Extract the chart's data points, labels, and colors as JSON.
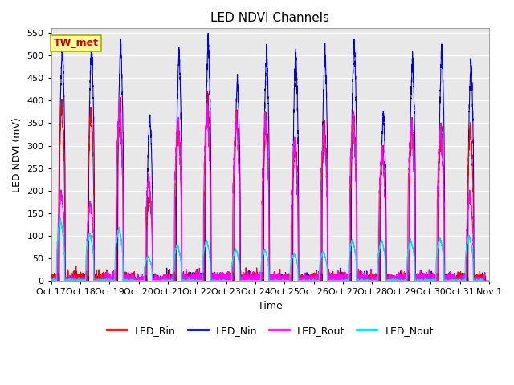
{
  "title": "LED NDVI Channels",
  "ylabel": "LED NDVI (mV)",
  "xlabel": "Time",
  "annotation": "TW_met",
  "ylim": [
    0,
    560
  ],
  "yticks": [
    0,
    50,
    100,
    150,
    200,
    250,
    300,
    350,
    400,
    450,
    500,
    550
  ],
  "xtick_labels": [
    "Oct 17",
    "Oct 18",
    "Oct 19",
    "Oct 20",
    "Oct 21",
    "Oct 22",
    "Oct 23",
    "Oct 24",
    "Oct 25",
    "Oct 26",
    "Oct 27",
    "Oct 28",
    "Oct 29",
    "Oct 30",
    "Oct 31",
    "Nov 1"
  ],
  "colors": {
    "LED_Rin": "#ff0000",
    "LED_Nin": "#0000ee",
    "LED_Rout": "#ff00ff",
    "LED_Nout": "#00ddff"
  },
  "background_color": "#e8e8e8",
  "line_width": 0.8,
  "peaks_Nin": [
    530,
    530,
    530,
    370,
    515,
    540,
    450,
    515,
    515,
    515,
    540,
    375,
    500,
    520,
    490
  ],
  "peaks_Rin": [
    400,
    385,
    390,
    195,
    350,
    405,
    370,
    365,
    310,
    345,
    370,
    295,
    355,
    345,
    345
  ],
  "peaks_Rout": [
    200,
    175,
    390,
    230,
    355,
    385,
    365,
    365,
    310,
    340,
    370,
    295,
    355,
    340,
    195
  ],
  "peaks_Nout": [
    135,
    105,
    115,
    55,
    80,
    90,
    70,
    70,
    60,
    65,
    90,
    90,
    90,
    95,
    100
  ],
  "peak_offsets_Nin": [
    0.38,
    0.38,
    0.38,
    0.38,
    0.38,
    0.38,
    0.38,
    0.38,
    0.38,
    0.38,
    0.38,
    0.38,
    0.38,
    0.38,
    0.38
  ],
  "peak_offsets_Rin": [
    0.36,
    0.36,
    0.36,
    0.36,
    0.36,
    0.36,
    0.36,
    0.36,
    0.36,
    0.36,
    0.36,
    0.36,
    0.36,
    0.36,
    0.36
  ],
  "peak_offsets_Rout": [
    0.34,
    0.34,
    0.34,
    0.34,
    0.34,
    0.34,
    0.34,
    0.34,
    0.34,
    0.34,
    0.34,
    0.34,
    0.34,
    0.34,
    0.34
  ],
  "peak_offsets_Nout": [
    0.32,
    0.32,
    0.32,
    0.32,
    0.32,
    0.32,
    0.32,
    0.32,
    0.32,
    0.32,
    0.32,
    0.32,
    0.32,
    0.32,
    0.32
  ]
}
